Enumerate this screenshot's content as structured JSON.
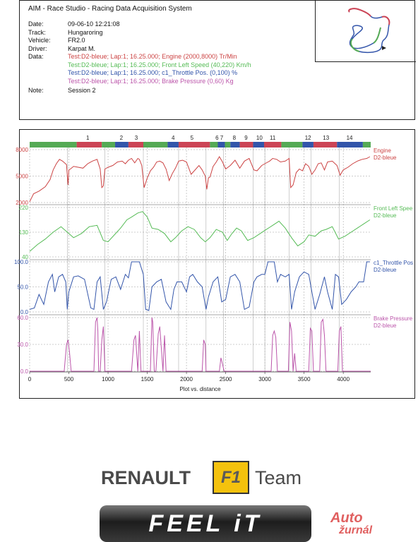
{
  "header": {
    "title": "AIM - Race Studio - Racing Data Acquisition System",
    "rows": [
      {
        "label": "Date:",
        "value": "09-06-10 12:21:08",
        "color": "#111111"
      },
      {
        "label": "Track:",
        "value": "Hungaroring",
        "color": "#111111"
      },
      {
        "label": "Vehicle:",
        "value": "FR2.0",
        "color": "#111111"
      },
      {
        "label": "Driver:",
        "value": "Karpat M.",
        "color": "#111111"
      }
    ],
    "data_label": "Data:",
    "data_lines": [
      {
        "text": "Test:D2-bleue; Lap:1; 16.25.000; Engine (2000,8000) Tr/Min",
        "color": "#cc4444"
      },
      {
        "text": "Test:D2-bleue; Lap:1; 16.25.000; Front Left Speed (40,220) Km/h",
        "color": "#55bb55"
      },
      {
        "text": "Test:D2-bleue; Lap:1; 16.25.000; c1_Throttle Pos. (0,100) %",
        "color": "#3355aa"
      },
      {
        "text": "Test:D2-bleue; Lap:1; 16.25.000; Brake Pressure (0,60) Kg",
        "color": "#bb55aa"
      }
    ],
    "note_label": "Note:",
    "note_value": "Session 2"
  },
  "chart_data": {
    "type": "line",
    "xlabel": "Plot vs. distance",
    "xlim": [
      0,
      4350
    ],
    "x_ticks": [
      "0",
      "500",
      "1000",
      "1500",
      "2000",
      "2500",
      "3000",
      "3500",
      "4000"
    ],
    "x_tick_values": [
      0,
      500,
      1000,
      1500,
      2000,
      2500,
      3000,
      3500,
      4000
    ],
    "sector_labels": [
      "1",
      "2",
      "3",
      "4",
      "5",
      "6",
      "7",
      "8",
      "9",
      "10",
      "11",
      "12",
      "13",
      "14"
    ],
    "sector_label_x": [
      740,
      1170,
      1360,
      1830,
      2070,
      2390,
      2450,
      2610,
      2760,
      2930,
      3100,
      3550,
      3780,
      4080
    ],
    "segments": [
      {
        "from": 0,
        "to": 600,
        "color": "#55aa55"
      },
      {
        "from": 600,
        "to": 920,
        "color": "#cc4455"
      },
      {
        "from": 920,
        "to": 1090,
        "color": "#55aa55"
      },
      {
        "from": 1090,
        "to": 1260,
        "color": "#3355aa"
      },
      {
        "from": 1260,
        "to": 1450,
        "color": "#cc4455"
      },
      {
        "from": 1450,
        "to": 1760,
        "color": "#55aa55"
      },
      {
        "from": 1760,
        "to": 1900,
        "color": "#3355aa"
      },
      {
        "from": 1900,
        "to": 2300,
        "color": "#cc4455"
      },
      {
        "from": 2300,
        "to": 2400,
        "color": "#55aa55"
      },
      {
        "from": 2400,
        "to": 2490,
        "color": "#3355aa"
      },
      {
        "from": 2490,
        "to": 2560,
        "color": "#55aa55"
      },
      {
        "from": 2560,
        "to": 2680,
        "color": "#3355aa"
      },
      {
        "from": 2680,
        "to": 2850,
        "color": "#cc4455"
      },
      {
        "from": 2850,
        "to": 2990,
        "color": "#3355aa"
      },
      {
        "from": 2990,
        "to": 3210,
        "color": "#cc4455"
      },
      {
        "from": 3210,
        "to": 3480,
        "color": "#55aa55"
      },
      {
        "from": 3480,
        "to": 3620,
        "color": "#3355aa"
      },
      {
        "from": 3620,
        "to": 3920,
        "color": "#cc4455"
      },
      {
        "from": 3920,
        "to": 4250,
        "color": "#3355aa"
      },
      {
        "from": 4250,
        "to": 4350,
        "color": "#55aa55"
      }
    ],
    "vlines": [
      480,
      960,
      1450,
      1900,
      2250,
      2470,
      2850,
      3000,
      3310,
      3590,
      3950
    ],
    "panels": [
      {
        "name": "Engine",
        "sub": "D2-bleue",
        "color": "#cc4444",
        "ylim": [
          2000,
          8000
        ],
        "y_ticks": [
          "2000",
          "5000",
          "8000"
        ],
        "y_tick_values": [
          2000,
          5000,
          8000
        ],
        "x": [
          0,
          50,
          120,
          200,
          260,
          300,
          340,
          380,
          420,
          470,
          490,
          500,
          520,
          560,
          620,
          680,
          740,
          800,
          860,
          900,
          920,
          940,
          960,
          1000,
          1060,
          1120,
          1180,
          1220,
          1260,
          1300,
          1340,
          1380,
          1400,
          1430,
          1460,
          1500,
          1540,
          1580,
          1620,
          1660,
          1700,
          1740,
          1780,
          1820,
          1860,
          1900,
          1950,
          2000,
          2060,
          2120,
          2160,
          2200,
          2240,
          2260,
          2280,
          2300,
          2340,
          2380,
          2420,
          2460,
          2500,
          2560,
          2620,
          2680,
          2740,
          2800,
          2860,
          2900,
          2960,
          3000,
          3060,
          3100,
          3150,
          3200,
          3260,
          3310,
          3330,
          3360,
          3400,
          3440,
          3480,
          3520,
          3560,
          3600,
          3640,
          3680,
          3720,
          3760,
          3800,
          3860,
          3920,
          3960,
          4000,
          4060,
          4120,
          4180,
          4240,
          4300,
          4340
        ],
        "y": [
          2100,
          3000,
          3300,
          3800,
          4600,
          5700,
          6400,
          6900,
          6700,
          6300,
          4000,
          5700,
          5800,
          6100,
          6000,
          5900,
          6400,
          6700,
          6900,
          5800,
          3700,
          3900,
          5800,
          6000,
          6200,
          6600,
          6700,
          6400,
          6800,
          7000,
          6500,
          7000,
          6900,
          6200,
          3700,
          4800,
          5600,
          6000,
          6600,
          6700,
          6500,
          5800,
          4500,
          5300,
          5900,
          6700,
          6800,
          6600,
          5200,
          5800,
          6200,
          5700,
          5000,
          3500,
          4800,
          4900,
          6100,
          6600,
          7200,
          6600,
          5800,
          6200,
          6800,
          5900,
          6700,
          7000,
          5700,
          5600,
          6200,
          6400,
          6700,
          7000,
          6900,
          6600,
          6700,
          7000,
          3700,
          4000,
          5400,
          5800,
          5600,
          6400,
          6100,
          5200,
          5700,
          6400,
          6500,
          5700,
          6600,
          6700,
          6200,
          5100,
          5700,
          6000,
          6400,
          6700,
          6900,
          7000,
          7200
        ]
      },
      {
        "name": "Front Left Spee",
        "sub": "D2-bleue",
        "color": "#55bb55",
        "ylim": [
          40,
          220
        ],
        "y_ticks": [
          "40",
          "130",
          "220"
        ],
        "y_tick_values": [
          40,
          130,
          220
        ],
        "x": [
          0,
          100,
          200,
          300,
          400,
          480,
          560,
          660,
          760,
          860,
          940,
          1000,
          1080,
          1160,
          1240,
          1300,
          1380,
          1440,
          1500,
          1560,
          1640,
          1720,
          1800,
          1860,
          1940,
          2020,
          2100,
          2180,
          2240,
          2300,
          2380,
          2460,
          2520,
          2580,
          2640,
          2700,
          2780,
          2860,
          2940,
          3020,
          3100,
          3180,
          3260,
          3340,
          3420,
          3500,
          3560,
          3640,
          3720,
          3780,
          3860,
          3940,
          4020,
          4100,
          4180,
          4260,
          4340
        ],
        "y": [
          60,
          85,
          105,
          130,
          150,
          130,
          110,
          125,
          150,
          155,
          100,
          95,
          120,
          145,
          175,
          185,
          200,
          205,
          185,
          145,
          140,
          125,
          95,
          110,
          135,
          150,
          140,
          110,
          95,
          110,
          140,
          130,
          100,
          125,
          145,
          135,
          100,
          110,
          125,
          140,
          155,
          170,
          145,
          110,
          80,
          95,
          120,
          115,
          135,
          140,
          150,
          105,
          115,
          130,
          145,
          160,
          175
        ]
      },
      {
        "name": "c1_Throttle Pos",
        "sub": "D2-bleue",
        "color": "#3355aa",
        "ylim": [
          0,
          100
        ],
        "y_ticks": [
          "0.0",
          "50.0",
          "100.0"
        ],
        "y_tick_values": [
          0,
          50,
          100
        ],
        "x": [
          0,
          60,
          120,
          180,
          240,
          290,
          320,
          370,
          420,
          460,
          480,
          500,
          560,
          620,
          700,
          780,
          820,
          860,
          900,
          940,
          980,
          1040,
          1100,
          1160,
          1220,
          1260,
          1300,
          1320,
          1340,
          1400,
          1450,
          1480,
          1520,
          1560,
          1620,
          1680,
          1740,
          1800,
          1840,
          1880,
          1940,
          2000,
          2040,
          2080,
          2140,
          2200,
          2250,
          2280,
          2340,
          2400,
          2450,
          2500,
          2560,
          2620,
          2680,
          2740,
          2800,
          2860,
          2900,
          2960,
          3000,
          3040,
          3080,
          3120,
          3160,
          3200,
          3260,
          3310,
          3340,
          3380,
          3440,
          3500,
          3560,
          3600,
          3640,
          3700,
          3760,
          3800,
          3860,
          3900,
          3940,
          3980,
          4040,
          4100,
          4160,
          4200,
          4260,
          4300,
          4340
        ],
        "y": [
          5,
          8,
          35,
          15,
          60,
          75,
          40,
          70,
          75,
          60,
          5,
          40,
          70,
          72,
          65,
          8,
          5,
          60,
          70,
          5,
          20,
          65,
          70,
          45,
          75,
          68,
          100,
          100,
          100,
          100,
          75,
          5,
          3,
          50,
          60,
          65,
          20,
          5,
          45,
          60,
          60,
          40,
          70,
          75,
          60,
          50,
          5,
          30,
          60,
          70,
          20,
          25,
          70,
          75,
          60,
          5,
          10,
          60,
          70,
          75,
          75,
          100,
          100,
          100,
          60,
          75,
          70,
          75,
          5,
          40,
          70,
          80,
          75,
          40,
          5,
          35,
          70,
          40,
          5,
          75,
          70,
          15,
          25,
          40,
          50,
          60,
          60,
          100,
          100
        ]
      },
      {
        "name": "Brake Pressure",
        "sub": "D2-bleue",
        "color": "#bb55aa",
        "ylim": [
          0,
          60
        ],
        "y_ticks": [
          "0.0",
          "30.0",
          "60.0"
        ],
        "y_tick_values": [
          0,
          30,
          60
        ],
        "x": [
          0,
          440,
          470,
          490,
          510,
          530,
          820,
          840,
          860,
          870,
          880,
          900,
          920,
          940,
          960,
          1300,
          1330,
          1350,
          1380,
          1400,
          1420,
          1540,
          1560,
          1570,
          1590,
          1610,
          1640,
          1660,
          1700,
          1720,
          1740,
          2200,
          2220,
          2240,
          2250,
          2270,
          2300,
          2420,
          2440,
          2460,
          2480,
          2560,
          2600,
          2640,
          2680,
          2720,
          2760,
          3080,
          3100,
          3120,
          3140,
          3160,
          3300,
          3320,
          3340,
          3360,
          3380,
          3400,
          3560,
          3580,
          3600,
          3620,
          3640,
          3700,
          3720,
          3740,
          3760,
          3780,
          3930,
          3950,
          3970,
          3990,
          4350
        ],
        "y": [
          0,
          0,
          30,
          35,
          20,
          0,
          0,
          55,
          60,
          45,
          0,
          0,
          35,
          50,
          0,
          0,
          35,
          40,
          0,
          45,
          0,
          0,
          60,
          55,
          0,
          0,
          42,
          50,
          0,
          40,
          0,
          0,
          35,
          30,
          0,
          0,
          0,
          0,
          15,
          8,
          0,
          0,
          0,
          0,
          0,
          0,
          0,
          0,
          40,
          45,
          38,
          0,
          0,
          55,
          45,
          0,
          20,
          0,
          0,
          48,
          45,
          0,
          0,
          0,
          55,
          58,
          40,
          0,
          0,
          45,
          50,
          0,
          0
        ]
      }
    ]
  },
  "logos": {
    "renault": "RENAULT",
    "f1": "F1",
    "team": "Team",
    "feel_it": "FEEL iT",
    "auto": "Auto",
    "zurnal": "žurnál"
  }
}
